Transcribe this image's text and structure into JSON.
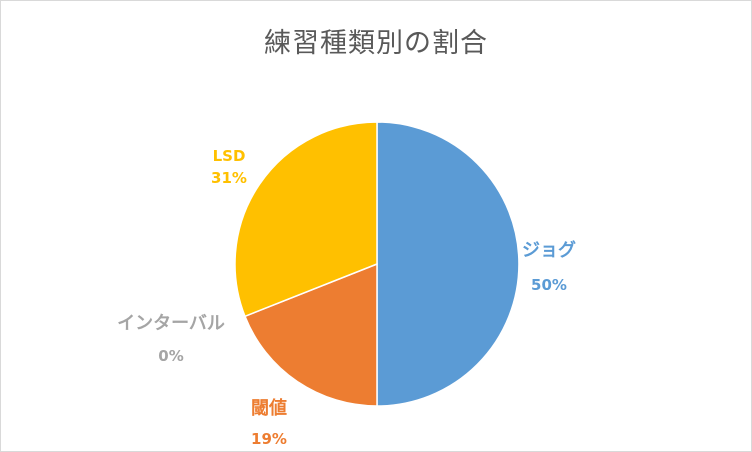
{
  "chart_data": {
    "type": "pie",
    "title": "練習種類別の割合",
    "slices": [
      {
        "label": "ジョグ",
        "percent_label": "50%",
        "value": 50,
        "color": "#5b9bd5"
      },
      {
        "label": "閾値",
        "percent_label": "19%",
        "value": 19,
        "color": "#ed7d31"
      },
      {
        "label": "インターバル",
        "percent_label": "0%",
        "value": 0,
        "color": "#a5a5a5"
      },
      {
        "label": "LSD",
        "percent_label": "31%",
        "value": 31,
        "color": "#ffc000"
      }
    ],
    "start_angle": "12 o'clock",
    "direction": "clockwise",
    "legend": "none",
    "data_labels": "outside"
  }
}
